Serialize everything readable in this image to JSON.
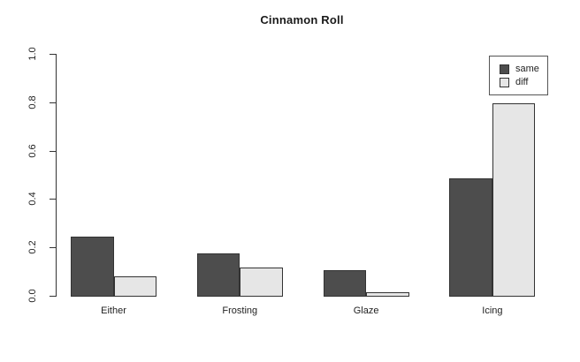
{
  "chart_data": {
    "type": "bar",
    "title": "Cinnamon Roll",
    "categories": [
      "Either",
      "Frosting",
      "Glaze",
      "Icing"
    ],
    "series": [
      {
        "name": "same",
        "color": "#4d4d4d",
        "values": [
          0.245,
          0.175,
          0.105,
          0.485
        ]
      },
      {
        "name": "diff",
        "color": "#e6e6e6",
        "values": [
          0.08,
          0.115,
          0.015,
          0.795
        ]
      }
    ],
    "xlabel": "",
    "ylabel": "",
    "ylim": [
      0,
      1
    ],
    "y_ticks": [
      "0.0",
      "0.2",
      "0.4",
      "0.6",
      "0.8",
      "1.0"
    ],
    "grid": false,
    "bar_border_color": "#333333",
    "axis_color": "#333333",
    "legend": {
      "position": "top-right",
      "entries": [
        "same",
        "diff"
      ]
    }
  }
}
